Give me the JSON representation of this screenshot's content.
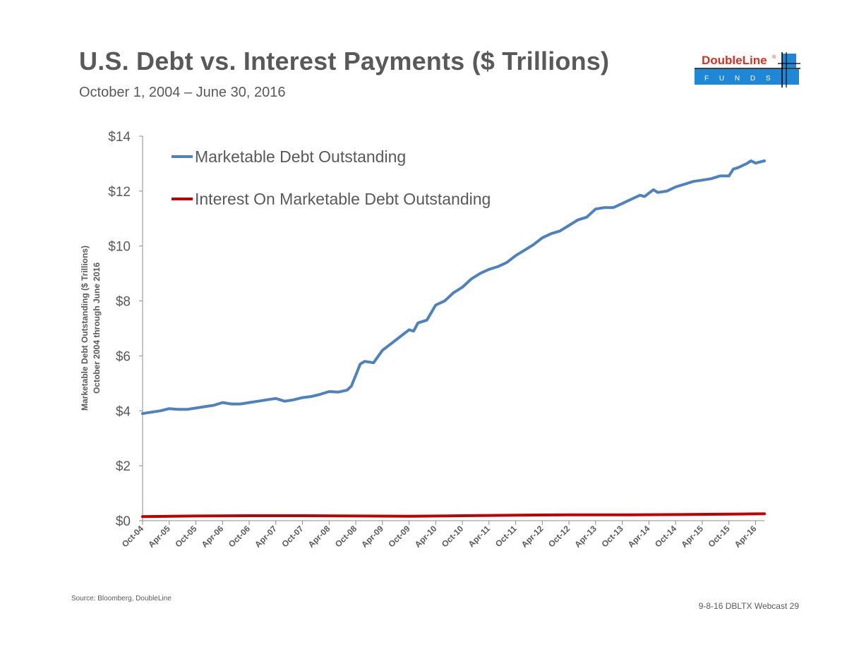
{
  "header": {
    "title": "U.S. Debt vs. Interest Payments ($ Trillions)",
    "subtitle": "October 1, 2004 – June 30, 2016"
  },
  "logo": {
    "brand": "DoubleLine",
    "registered_mark": "®",
    "tagline": "F U N D S",
    "brand_color": "#d7301f",
    "accent_color": "#1e88d6"
  },
  "footer": {
    "source": "Source: Bloomberg, DoubleLine",
    "page_ref": "9-8-16 DBLTX Webcast 29"
  },
  "chart_data": {
    "type": "line",
    "title": "",
    "ylabel_line1": "Marketable Debt Outstanding ($ Trillions)",
    "ylabel_line2": "October 2004 through June 2016",
    "ylim": [
      0,
      14
    ],
    "y_ticks": [
      0,
      2,
      4,
      6,
      8,
      10,
      12,
      14
    ],
    "y_tick_labels": [
      "$0",
      "$2",
      "$4",
      "$6",
      "$8",
      "$10",
      "$12",
      "$14"
    ],
    "x_range": [
      "2004-10",
      "2016-06"
    ],
    "x_tick_labels": [
      "Oct-04",
      "Apr-05",
      "Oct-05",
      "Apr-06",
      "Oct-06",
      "Apr-07",
      "Oct-07",
      "Apr-08",
      "Oct-08",
      "Apr-09",
      "Oct-09",
      "Apr-10",
      "Oct-10",
      "Apr-11",
      "Oct-11",
      "Apr-12",
      "Oct-12",
      "Apr-13",
      "Oct-13",
      "Apr-14",
      "Oct-14",
      "Apr-15",
      "Oct-15",
      "Apr-16"
    ],
    "grid": false,
    "legend_position": "top-left",
    "series": [
      {
        "name": "Marketable Debt Outstanding",
        "color": "#4f81bd",
        "points": [
          [
            "2004-10",
            3.9
          ],
          [
            "2004-12",
            3.95
          ],
          [
            "2005-02",
            4.0
          ],
          [
            "2005-04",
            4.08
          ],
          [
            "2005-06",
            4.05
          ],
          [
            "2005-08",
            4.05
          ],
          [
            "2005-10",
            4.1
          ],
          [
            "2005-12",
            4.15
          ],
          [
            "2006-02",
            4.2
          ],
          [
            "2006-04",
            4.3
          ],
          [
            "2006-06",
            4.25
          ],
          [
            "2006-08",
            4.25
          ],
          [
            "2006-10",
            4.3
          ],
          [
            "2006-12",
            4.35
          ],
          [
            "2007-02",
            4.4
          ],
          [
            "2007-04",
            4.45
          ],
          [
            "2007-06",
            4.35
          ],
          [
            "2007-08",
            4.4
          ],
          [
            "2007-10",
            4.48
          ],
          [
            "2007-12",
            4.52
          ],
          [
            "2008-02",
            4.6
          ],
          [
            "2008-04",
            4.7
          ],
          [
            "2008-06",
            4.68
          ],
          [
            "2008-08",
            4.75
          ],
          [
            "2008-09",
            4.9
          ],
          [
            "2008-10",
            5.3
          ],
          [
            "2008-11",
            5.7
          ],
          [
            "2008-12",
            5.8
          ],
          [
            "2009-02",
            5.75
          ],
          [
            "2009-04",
            6.2
          ],
          [
            "2009-06",
            6.45
          ],
          [
            "2009-08",
            6.7
          ],
          [
            "2009-10",
            6.95
          ],
          [
            "2009-11",
            6.9
          ],
          [
            "2009-12",
            7.2
          ],
          [
            "2010-02",
            7.3
          ],
          [
            "2010-04",
            7.85
          ],
          [
            "2010-06",
            8.0
          ],
          [
            "2010-08",
            8.3
          ],
          [
            "2010-10",
            8.5
          ],
          [
            "2010-12",
            8.8
          ],
          [
            "2011-02",
            9.0
          ],
          [
            "2011-04",
            9.15
          ],
          [
            "2011-06",
            9.25
          ],
          [
            "2011-08",
            9.4
          ],
          [
            "2011-10",
            9.65
          ],
          [
            "2011-12",
            9.85
          ],
          [
            "2012-02",
            10.05
          ],
          [
            "2012-04",
            10.3
          ],
          [
            "2012-06",
            10.45
          ],
          [
            "2012-08",
            10.55
          ],
          [
            "2012-10",
            10.75
          ],
          [
            "2012-12",
            10.95
          ],
          [
            "2013-02",
            11.05
          ],
          [
            "2013-04",
            11.35
          ],
          [
            "2013-06",
            11.4
          ],
          [
            "2013-08",
            11.4
          ],
          [
            "2013-10",
            11.55
          ],
          [
            "2013-12",
            11.7
          ],
          [
            "2014-02",
            11.85
          ],
          [
            "2014-03",
            11.8
          ],
          [
            "2014-05",
            12.05
          ],
          [
            "2014-06",
            11.95
          ],
          [
            "2014-08",
            12.0
          ],
          [
            "2014-10",
            12.15
          ],
          [
            "2014-12",
            12.25
          ],
          [
            "2015-02",
            12.35
          ],
          [
            "2015-04",
            12.4
          ],
          [
            "2015-06",
            12.45
          ],
          [
            "2015-08",
            12.55
          ],
          [
            "2015-10",
            12.55
          ],
          [
            "2015-11",
            12.8
          ],
          [
            "2015-12",
            12.85
          ],
          [
            "2016-02",
            13.0
          ],
          [
            "2016-03",
            13.1
          ],
          [
            "2016-04",
            13.02
          ],
          [
            "2016-06",
            13.1
          ]
        ]
      },
      {
        "name": "Interest On Marketable Debt Outstanding",
        "color": "#c00000",
        "points": [
          [
            "2004-10",
            0.15
          ],
          [
            "2005-10",
            0.17
          ],
          [
            "2006-10",
            0.18
          ],
          [
            "2007-10",
            0.18
          ],
          [
            "2008-10",
            0.17
          ],
          [
            "2009-10",
            0.16
          ],
          [
            "2010-10",
            0.18
          ],
          [
            "2011-10",
            0.2
          ],
          [
            "2012-10",
            0.21
          ],
          [
            "2013-10",
            0.21
          ],
          [
            "2014-10",
            0.22
          ],
          [
            "2015-10",
            0.24
          ],
          [
            "2016-06",
            0.25
          ]
        ]
      }
    ]
  }
}
